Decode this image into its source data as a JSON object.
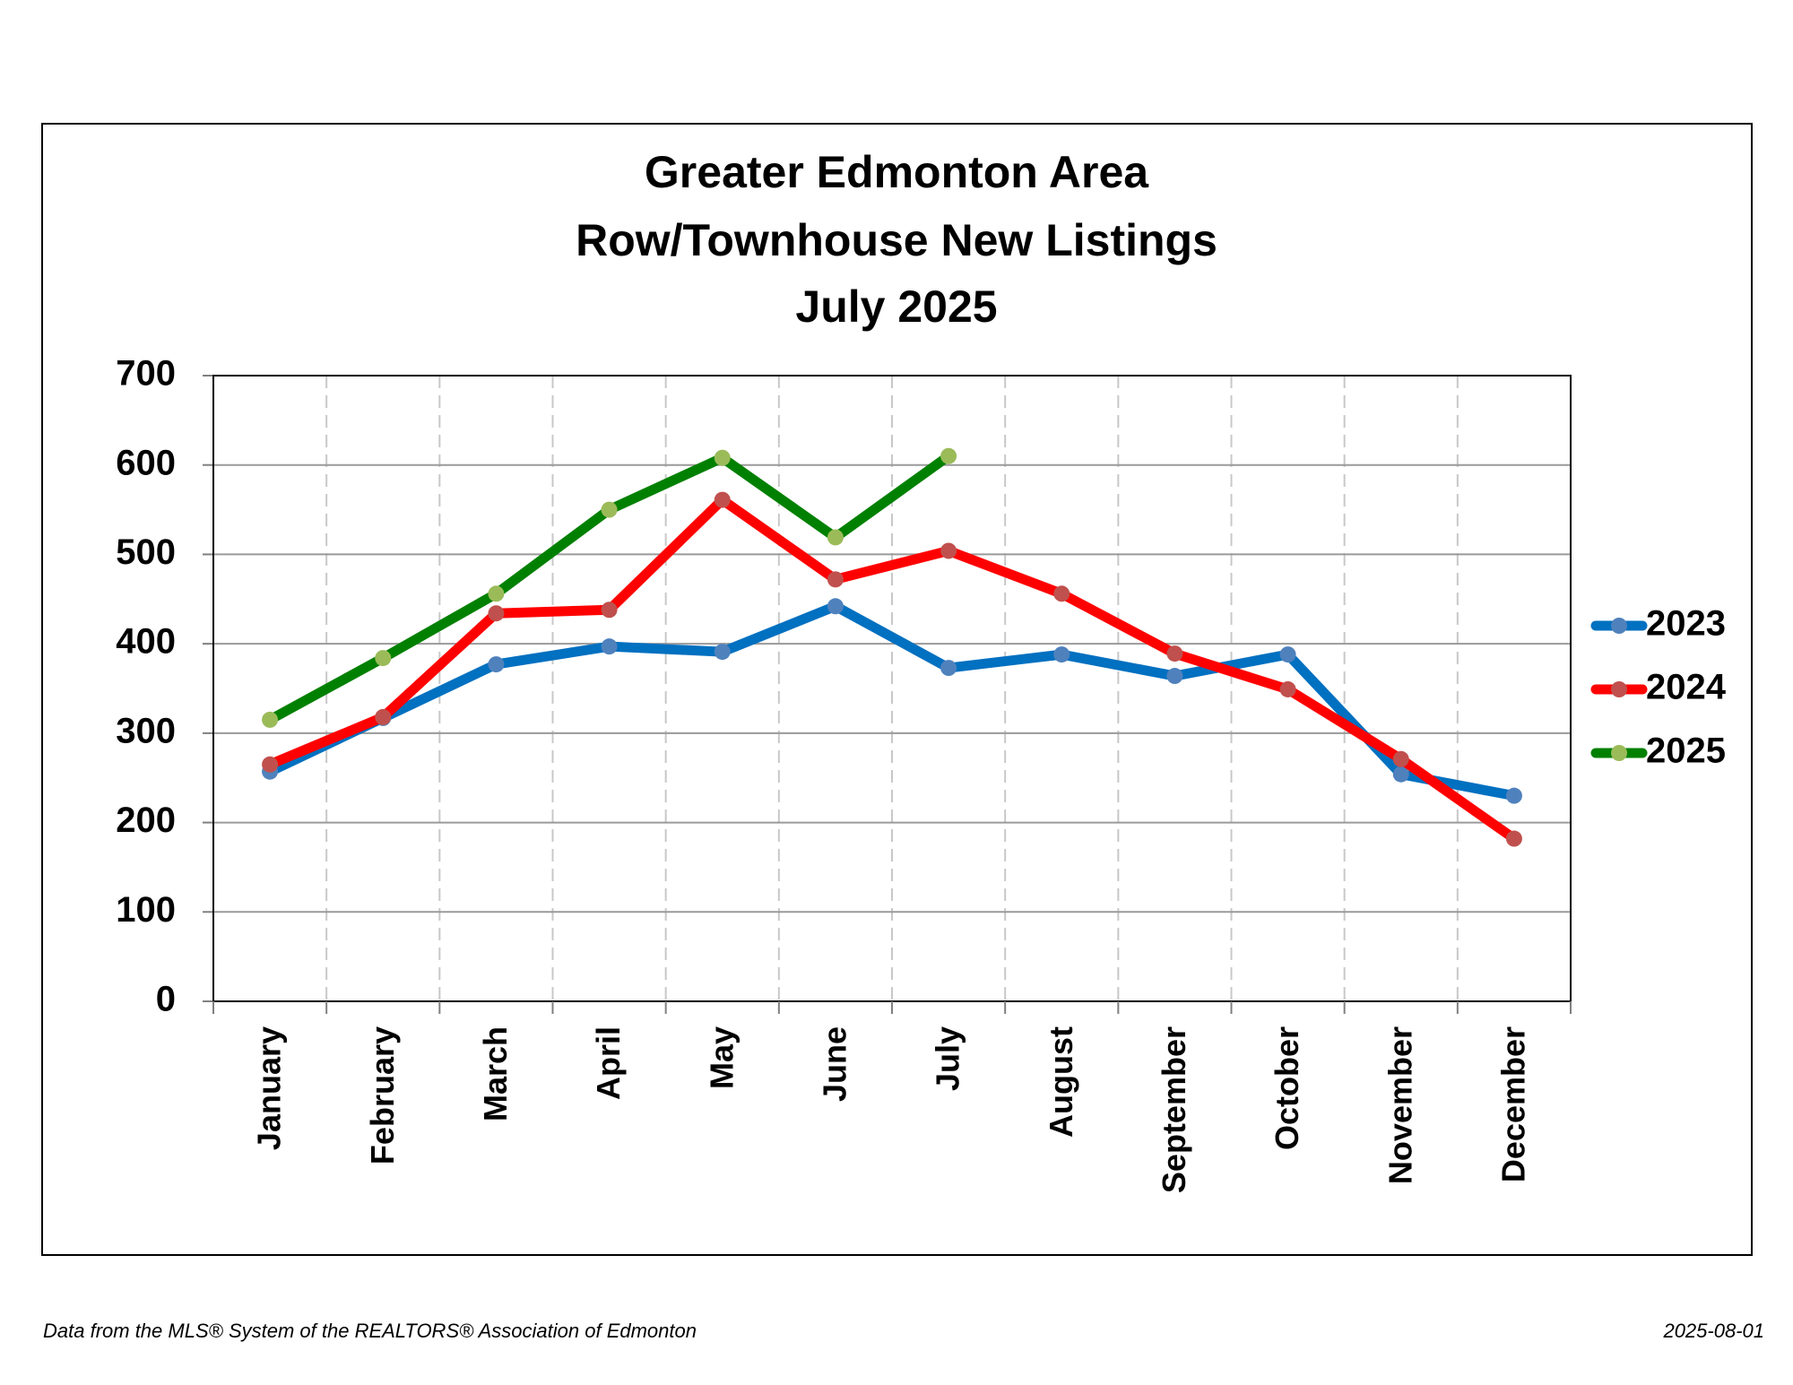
{
  "chart_data": {
    "type": "line",
    "title": [
      "Greater Edmonton Area",
      "Row/Townhouse New Listings",
      "July 2025"
    ],
    "categories": [
      "January",
      "February",
      "March",
      "April",
      "May",
      "June",
      "July",
      "August",
      "September",
      "October",
      "November",
      "December"
    ],
    "series": [
      {
        "name": "2023",
        "color": "#0070c0",
        "marker_color": "#4f81bd",
        "values": [
          257,
          317,
          377,
          397,
          391,
          442,
          373,
          388,
          364,
          388,
          254,
          230
        ]
      },
      {
        "name": "2024",
        "color": "#ff0000",
        "marker_color": "#c0504d",
        "values": [
          265,
          318,
          434,
          438,
          561,
          472,
          504,
          456,
          389,
          349,
          271,
          182
        ]
      },
      {
        "name": "2025",
        "color": "#008000",
        "marker_color": "#9bbb59",
        "values": [
          315,
          384,
          456,
          550,
          608,
          519,
          610,
          null,
          null,
          null,
          null,
          null
        ]
      }
    ],
    "ylim": [
      0,
      700
    ],
    "yticks": [
      0,
      100,
      200,
      300,
      400,
      500,
      600,
      700
    ],
    "grid": true,
    "legend": "right",
    "footer": {
      "source": "Data from the MLS® System of the REALTORS® Association of Edmonton",
      "date": "2025-08-01"
    }
  }
}
